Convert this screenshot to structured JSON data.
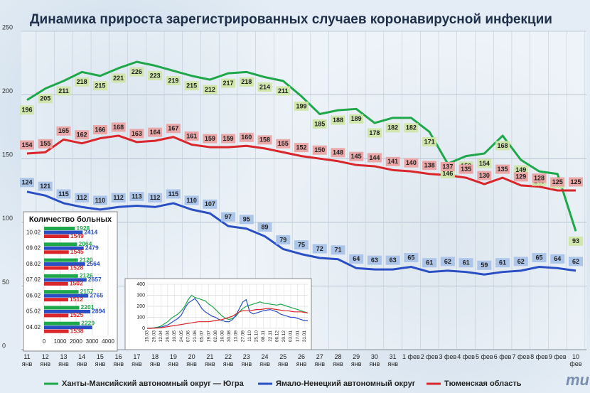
{
  "chart_data": [
    {
      "type": "line",
      "title": "Динамика прироста зарегистрированных случаев коронавирусной инфекции",
      "categories": [
        "11 янв",
        "12 янв",
        "13 янв",
        "14 янв",
        "15 янв",
        "16 янв",
        "17 янв",
        "18 янв",
        "19 янв",
        "20 янв",
        "21 янв",
        "22 янв",
        "23 янв",
        "24 янв",
        "25 янв",
        "26 янв",
        "27 янв",
        "28 янв",
        "29 янв",
        "30 янв",
        "31 янв",
        "1 фев",
        "2 фев",
        "3 фев",
        "4 фев",
        "5 фев",
        "6 фев",
        "7 фев",
        "8 фев",
        "9 фев",
        "10 фев"
      ],
      "series": [
        {
          "name": "Ханты-Мансийский автономный округ — Югра",
          "color": "#1fa84a",
          "values": [
            196,
            205,
            211,
            218,
            215,
            221,
            226,
            223,
            219,
            215,
            212,
            217,
            218,
            214,
            211,
            199,
            185,
            188,
            189,
            178,
            182,
            182,
            171,
            146,
            152,
            154,
            168,
            149,
            140,
            138,
            93
          ]
        },
        {
          "name": "Ямало-Ненецкий автономный округ",
          "color": "#2a4fc4",
          "values": [
            124,
            121,
            115,
            112,
            110,
            112,
            113,
            112,
            115,
            110,
            107,
            97,
            95,
            89,
            79,
            75,
            72,
            71,
            64,
            63,
            63,
            65,
            61,
            62,
            61,
            59,
            61,
            62,
            65,
            64,
            62
          ]
        },
        {
          "name": "Тюменская область",
          "color": "#d9262b",
          "values": [
            154,
            155,
            165,
            162,
            166,
            168,
            163,
            164,
            167,
            161,
            159,
            159,
            160,
            158,
            155,
            152,
            150,
            148,
            145,
            144,
            141,
            140,
            138,
            137,
            135,
            130,
            135,
            129,
            128,
            125,
            125
          ]
        }
      ],
      "ylim": [
        0,
        250
      ],
      "yticks": [
        0,
        50,
        100,
        150,
        200,
        250
      ],
      "grid": true
    },
    {
      "type": "barh",
      "title": "Количество больных",
      "categories": [
        "10.02",
        "09.02",
        "08.02",
        "07.02",
        "06.02",
        "05.02",
        "04.02"
      ],
      "series": [
        {
          "color": "#1fa84a",
          "values": [
            1928,
            2064,
            2120,
            2126,
            2157,
            2201,
            2229
          ]
        },
        {
          "color": "#2a4fc4",
          "values": [
            2414,
            2479,
            2564,
            2657,
            2765,
            2894,
            3010
          ],
          "value_labels": [
            "2414",
            "2479",
            "2564",
            "2657",
            "2765",
            "2894",
            null
          ]
        },
        {
          "color": "#d9262b",
          "values": [
            1549,
            1545,
            1528,
            1502,
            1512,
            1525,
            1538
          ]
        }
      ],
      "xlim": [
        0,
        4000
      ],
      "xticks": [
        0,
        1000,
        2000,
        3000,
        4000
      ],
      "grid": true
    },
    {
      "type": "line",
      "categories": [
        "15.03",
        null,
        "29.03",
        null,
        "12.04",
        null,
        "26.04",
        null,
        "10.05",
        null,
        "24.05",
        null,
        "07.06",
        null,
        "21.06",
        null,
        "05.07",
        null,
        "19.07",
        null,
        "02.08",
        null,
        "16.08",
        null,
        "30.08",
        null,
        "13.09",
        null,
        "27.09",
        null,
        "11.10",
        null,
        "25.10",
        null,
        "08.11",
        null,
        "22.11",
        null,
        "06.12",
        null,
        "20.12",
        null,
        "03.01",
        null,
        "17.01",
        null,
        "31.01",
        null
      ],
      "series": [
        {
          "color": "#1fa84a",
          "values": [
            0,
            2,
            5,
            10,
            20,
            40,
            60,
            90,
            110,
            130,
            160,
            200,
            260,
            300,
            280,
            270,
            260,
            250,
            220,
            200,
            170,
            140,
            110,
            90,
            80,
            90,
            110,
            150,
            180,
            200,
            210,
            220,
            230,
            240,
            230,
            225,
            220,
            215,
            210,
            220,
            210,
            200,
            190,
            180,
            170,
            160,
            150,
            140
          ]
        },
        {
          "color": "#2a4fc4",
          "values": [
            0,
            0,
            2,
            5,
            10,
            20,
            30,
            50,
            70,
            90,
            120,
            180,
            230,
            250,
            270,
            230,
            180,
            150,
            130,
            110,
            100,
            80,
            70,
            60,
            60,
            80,
            120,
            180,
            240,
            260,
            150,
            130,
            140,
            150,
            160,
            165,
            170,
            160,
            150,
            130,
            120,
            110,
            100,
            100,
            90,
            80,
            70,
            70
          ]
        },
        {
          "color": "#d9262b",
          "values": [
            0,
            0,
            1,
            3,
            5,
            10,
            15,
            20,
            25,
            30,
            35,
            40,
            45,
            50,
            55,
            60,
            60,
            60,
            60,
            65,
            70,
            75,
            80,
            90,
            100,
            110,
            130,
            150,
            160,
            160,
            160,
            165,
            170,
            170,
            175,
            180,
            180,
            175,
            170,
            165,
            160,
            160,
            155,
            150,
            150,
            150,
            145,
            140
          ]
        }
      ],
      "ylim": [
        0,
        400
      ],
      "yticks": [
        0,
        100,
        200,
        300,
        400
      ],
      "grid": true
    }
  ],
  "logo": "mu"
}
